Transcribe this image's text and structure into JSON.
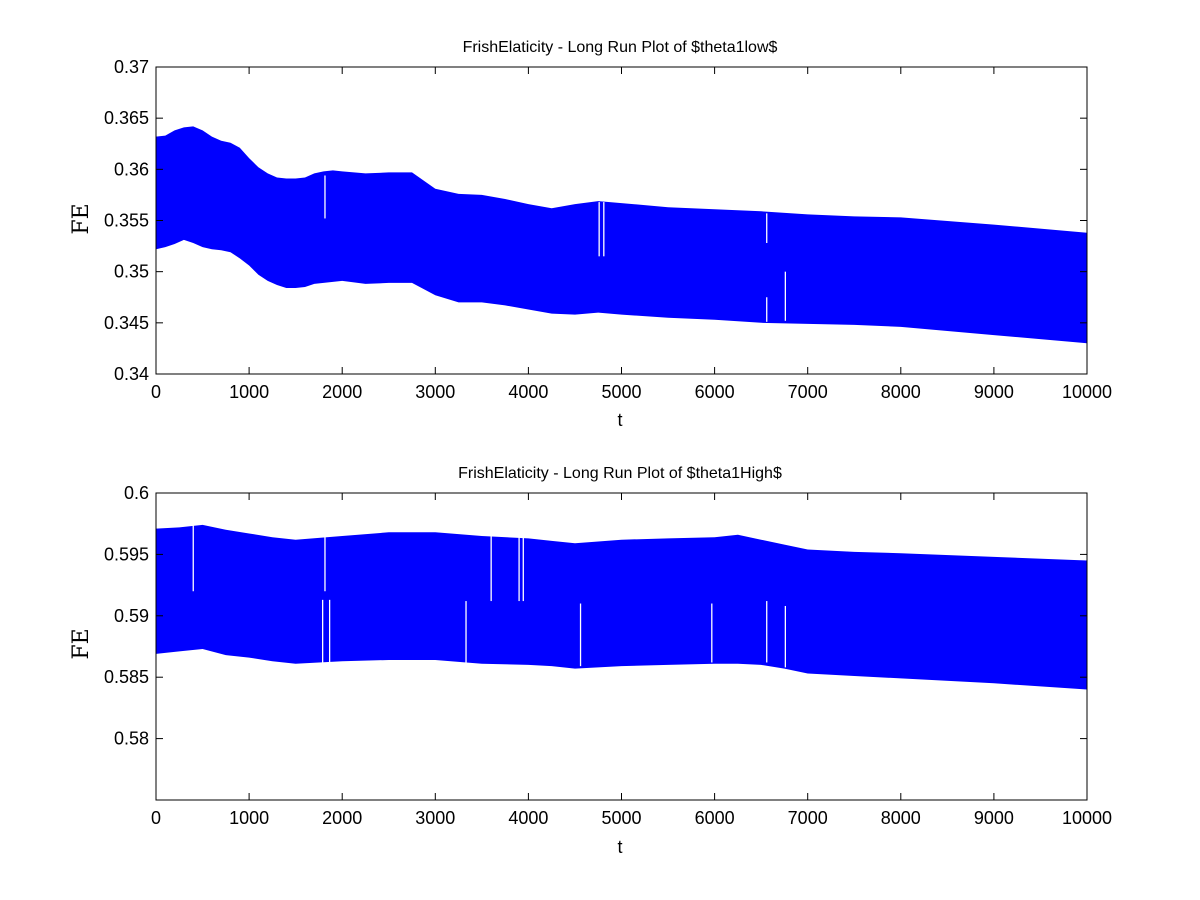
{
  "chart_data": [
    {
      "type": "area",
      "title": "FrishElaticity - Long Run Plot of $theta1low$",
      "xlabel": "t",
      "ylabel": "FE",
      "xlim": [
        0,
        10000
      ],
      "ylim": [
        0.34,
        0.37
      ],
      "xticks": [
        "0",
        "1000",
        "2000",
        "3000",
        "4000",
        "5000",
        "6000",
        "7000",
        "8000",
        "9000",
        "10000"
      ],
      "yticks": [
        "0.34",
        "0.345",
        "0.35",
        "0.355",
        "0.36",
        "0.365",
        "0.37"
      ],
      "grid": false,
      "color": "#0000ff",
      "series": [
        {
          "x": [
            0,
            100,
            200,
            300,
            400,
            500,
            600,
            700,
            800,
            900,
            1000,
            1100,
            1200,
            1300,
            1400,
            1500,
            1600,
            1700,
            1800,
            1900,
            2000,
            2250,
            2500,
            2750,
            3000,
            3250,
            3500,
            3750,
            4000,
            4250,
            4500,
            4750,
            5000,
            5500,
            6000,
            6500,
            7000,
            7500,
            8000,
            9000,
            10000
          ],
          "upper": [
            0.3632,
            0.3633,
            0.3638,
            0.3641,
            0.3642,
            0.3638,
            0.3632,
            0.3628,
            0.3626,
            0.3621,
            0.3611,
            0.3602,
            0.3596,
            0.3592,
            0.3591,
            0.3591,
            0.3592,
            0.3596,
            0.3598,
            0.3599,
            0.3598,
            0.3596,
            0.3597,
            0.3597,
            0.3581,
            0.3576,
            0.3575,
            0.3571,
            0.3566,
            0.3562,
            0.3566,
            0.3569,
            0.3567,
            0.3563,
            0.3561,
            0.3559,
            0.3556,
            0.3554,
            0.3553,
            0.3546,
            0.3538
          ],
          "lower": [
            0.3522,
            0.3524,
            0.3527,
            0.3531,
            0.3528,
            0.3524,
            0.3522,
            0.3521,
            0.3519,
            0.3513,
            0.3506,
            0.3497,
            0.3491,
            0.3487,
            0.3484,
            0.3484,
            0.3485,
            0.3488,
            0.3489,
            0.349,
            0.3491,
            0.3488,
            0.3489,
            0.3489,
            0.3477,
            0.347,
            0.347,
            0.3467,
            0.3463,
            0.3459,
            0.3458,
            0.346,
            0.3458,
            0.3455,
            0.3453,
            0.345,
            0.3449,
            0.3448,
            0.3446,
            0.3438,
            0.343
          ]
        }
      ],
      "gaps": [
        {
          "x": 1815,
          "y1": 0.3552,
          "y2": 0.3594
        },
        {
          "x": 4760,
          "y1": 0.3515,
          "y2": 0.3568
        },
        {
          "x": 4810,
          "y1": 0.3515,
          "y2": 0.3568
        },
        {
          "x": 6560,
          "y1": 0.3528,
          "y2": 0.3557
        },
        {
          "x": 6560,
          "y1": 0.3451,
          "y2": 0.3475
        },
        {
          "x": 6760,
          "y1": 0.3452,
          "y2": 0.35
        }
      ]
    },
    {
      "type": "area",
      "title": "FrishElaticity - Long Run Plot of $theta1High$",
      "xlabel": "t",
      "ylabel": "FE",
      "xlim": [
        0,
        10000
      ],
      "ylim": [
        0.575,
        0.6
      ],
      "xticks": [
        "0",
        "1000",
        "2000",
        "3000",
        "4000",
        "5000",
        "6000",
        "7000",
        "8000",
        "9000",
        "10000"
      ],
      "yticks": [
        "0.58",
        "0.585",
        "0.59",
        "0.595",
        "0.6"
      ],
      "grid": false,
      "color": "#0000ff",
      "series": [
        {
          "x": [
            0,
            250,
            500,
            750,
            1000,
            1250,
            1500,
            2000,
            2500,
            3000,
            3500,
            4000,
            4250,
            4500,
            5000,
            5500,
            6000,
            6250,
            6500,
            6750,
            7000,
            7500,
            8000,
            9000,
            10000
          ],
          "upper": [
            0.5971,
            0.5972,
            0.5974,
            0.597,
            0.5967,
            0.5964,
            0.5962,
            0.5965,
            0.5968,
            0.5968,
            0.5965,
            0.5963,
            0.5961,
            0.5959,
            0.5962,
            0.5963,
            0.5964,
            0.5966,
            0.5962,
            0.5958,
            0.5954,
            0.5952,
            0.5951,
            0.5948,
            0.5945
          ],
          "lower": [
            0.5869,
            0.5871,
            0.5873,
            0.5868,
            0.5866,
            0.5863,
            0.5861,
            0.5863,
            0.5864,
            0.5864,
            0.5861,
            0.586,
            0.5859,
            0.5857,
            0.5859,
            0.586,
            0.5861,
            0.5861,
            0.586,
            0.5857,
            0.5853,
            0.5851,
            0.5849,
            0.5845,
            0.584
          ]
        }
      ],
      "gaps": [
        {
          "x": 400,
          "y1": 0.592,
          "y2": 0.5975
        },
        {
          "x": 1790,
          "y1": 0.586,
          "y2": 0.5913
        },
        {
          "x": 1815,
          "y1": 0.592,
          "y2": 0.597
        },
        {
          "x": 1865,
          "y1": 0.5862,
          "y2": 0.5913
        },
        {
          "x": 3330,
          "y1": 0.586,
          "y2": 0.5912
        },
        {
          "x": 3600,
          "y1": 0.5912,
          "y2": 0.5968
        },
        {
          "x": 3900,
          "y1": 0.5912,
          "y2": 0.5968
        },
        {
          "x": 3945,
          "y1": 0.5912,
          "y2": 0.5968
        },
        {
          "x": 4560,
          "y1": 0.5859,
          "y2": 0.591
        },
        {
          "x": 5970,
          "y1": 0.5862,
          "y2": 0.591
        },
        {
          "x": 6560,
          "y1": 0.5862,
          "y2": 0.5912
        },
        {
          "x": 6760,
          "y1": 0.5858,
          "y2": 0.5908
        }
      ]
    }
  ]
}
